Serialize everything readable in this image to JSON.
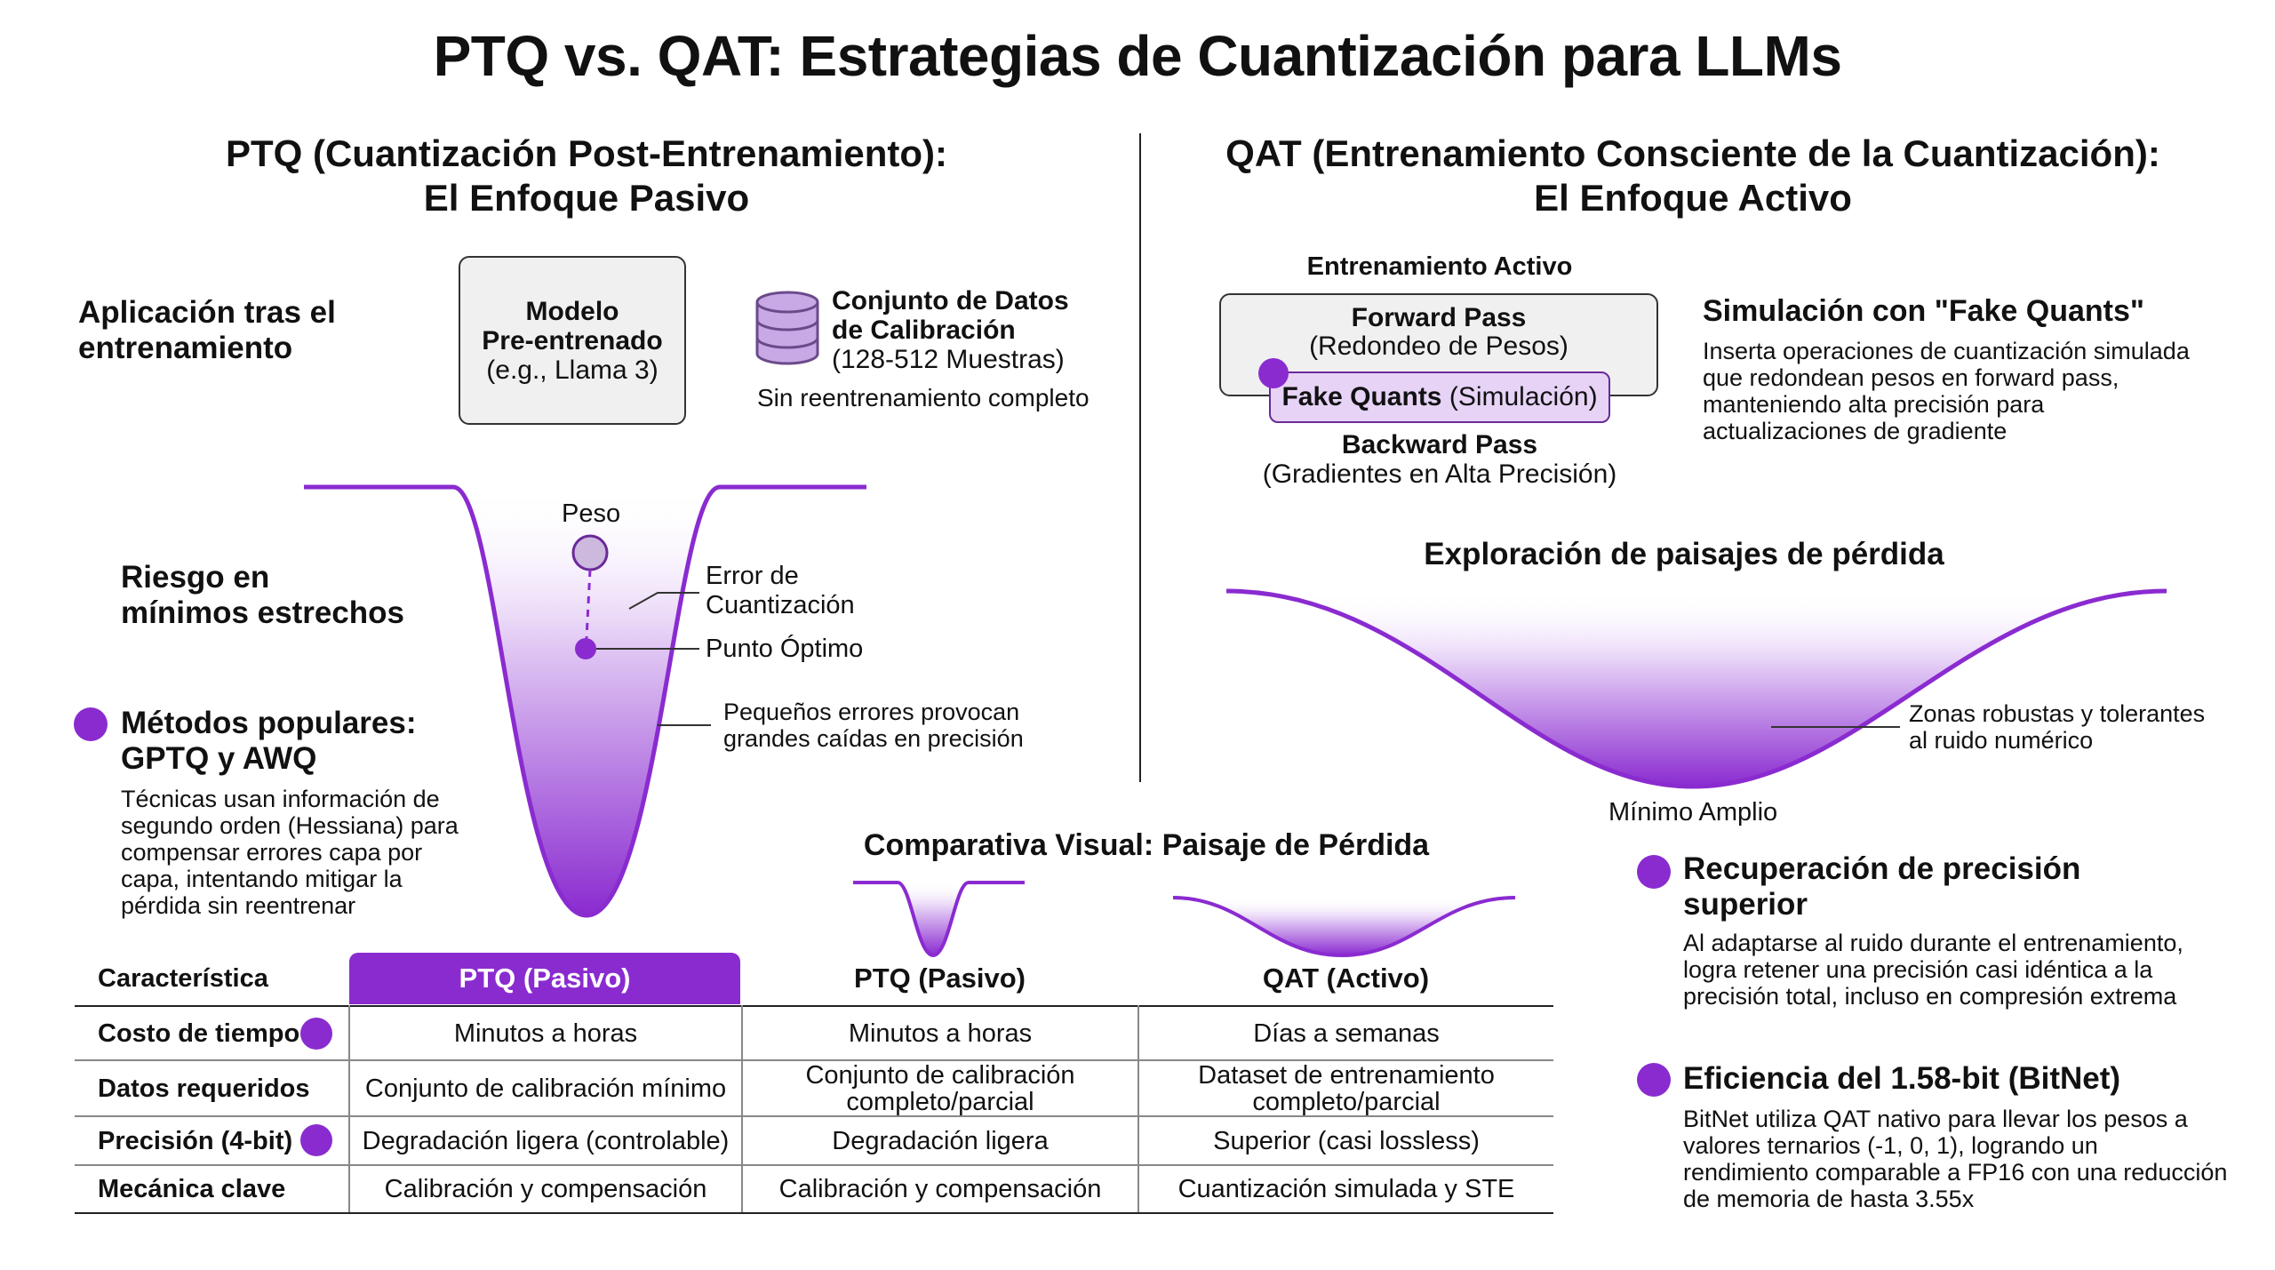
{
  "title": "PTQ vs. QAT: Estrategias de Cuantización para LLMs",
  "colors": {
    "accent": "#8a2bd0",
    "accent_light": "#e6d3f6",
    "box_bg": "#f0f0f0"
  },
  "ptq": {
    "title_line1": "PTQ (Cuantización Post-Entrenamiento):",
    "title_line2": "El Enfoque Pasivo",
    "application_line1": "Aplicación tras el",
    "application_line2": "entrenamiento",
    "model_box": {
      "line1": "Modelo",
      "line2": "Pre-entrenado",
      "line3": "(e.g., Llama 3)"
    },
    "calibration": {
      "line1": "Conjunto de Datos",
      "line2": "de Calibración",
      "line3": "(128-512 Muestras)",
      "note": "Sin reentrenamiento completo",
      "icon": "database-icon"
    },
    "risk_line1": "Riesgo en",
    "risk_line2": "mínimos estrechos",
    "weight_label": "Peso",
    "quant_error_line1": "Error de",
    "quant_error_line2": "Cuantización",
    "optimal_point": "Punto Óptimo",
    "small_errors_line1": "Pequeños errores provocan",
    "small_errors_line2": "grandes caídas en precisión",
    "methods_line1": "Métodos populares:",
    "methods_line2": "GPTQ y AWQ",
    "methods_desc": [
      "Técnicas usan información de",
      "segundo orden (Hessiana) para",
      "compensar errores capa por",
      "capa, intentando mitigar la",
      "pérdida sin reentrenar"
    ]
  },
  "qat": {
    "title_line1": "QAT (Entrenamiento Consciente de la Cuantización):",
    "title_line2": "El Enfoque Activo",
    "active_training": "Entrenamiento Activo",
    "forward_pass": "Forward Pass",
    "forward_sub": "(Redondeo de Pesos)",
    "fake_quants_bold": "Fake Quants",
    "fake_quants_sub": "(Simulación)",
    "backward_pass": "Backward Pass",
    "backward_sub": "(Gradientes en Alta Precisión)",
    "simulation_title": "Simulación con \"Fake Quants\"",
    "simulation_desc": [
      "Inserta operaciones de cuantización simulada",
      "que redondean pesos en forward pass,",
      "manteniendo alta precisión para",
      "actualizaciones de gradiente"
    ],
    "landscape_title": "Exploración de paisajes de pérdida",
    "robust_line1": "Zonas robustas y tolerantes",
    "robust_line2": "al ruido numérico",
    "wide_minimum": "Mínimo Amplio",
    "recovery_line1": "Recuperación de precisión",
    "recovery_line2": "superior",
    "recovery_desc": [
      "Al adaptarse al ruido durante el entrenamiento,",
      "logra retener una precisión casi idéntica a la",
      "precisión total, incluso en compresión extrema"
    ],
    "bitnet_title": "Eficiencia del 1.58-bit (BitNet)",
    "bitnet_desc": [
      "BitNet utiliza QAT nativo para llevar los pesos a",
      "valores ternarios (-1, 0, 1), logrando un",
      "rendimiento comparable a FP16 con una reducción",
      "de memoria de hasta 3.55x"
    ]
  },
  "visual_comparison_title": "Comparativa Visual: Paisaje de Pérdida",
  "table": {
    "headers": [
      "Característica",
      "PTQ (Pasivo)",
      "PTQ (Pasivo)",
      "QAT (Activo)"
    ],
    "rows": [
      {
        "label": "Costo de tiempo",
        "marked": true,
        "cells": [
          "Minutos a horas",
          "Minutos a horas",
          "Días a semanas"
        ]
      },
      {
        "label": "Datos requeridos",
        "marked": false,
        "cells": [
          "Conjunto de calibración mínimo",
          "Conjunto de calibración\ncompleto/parcial",
          "Dataset de entrenamiento\ncompleto/parcial"
        ]
      },
      {
        "label": "Precisión (4-bit)",
        "marked": true,
        "cells": [
          "Degradación ligera (controlable)",
          "Degradación ligera",
          "Superior (casi lossless)"
        ]
      },
      {
        "label": "Mecánica clave",
        "marked": false,
        "cells": [
          "Calibración y compensación",
          "Calibración y compensación",
          "Cuantización simulada y STE"
        ]
      }
    ]
  }
}
